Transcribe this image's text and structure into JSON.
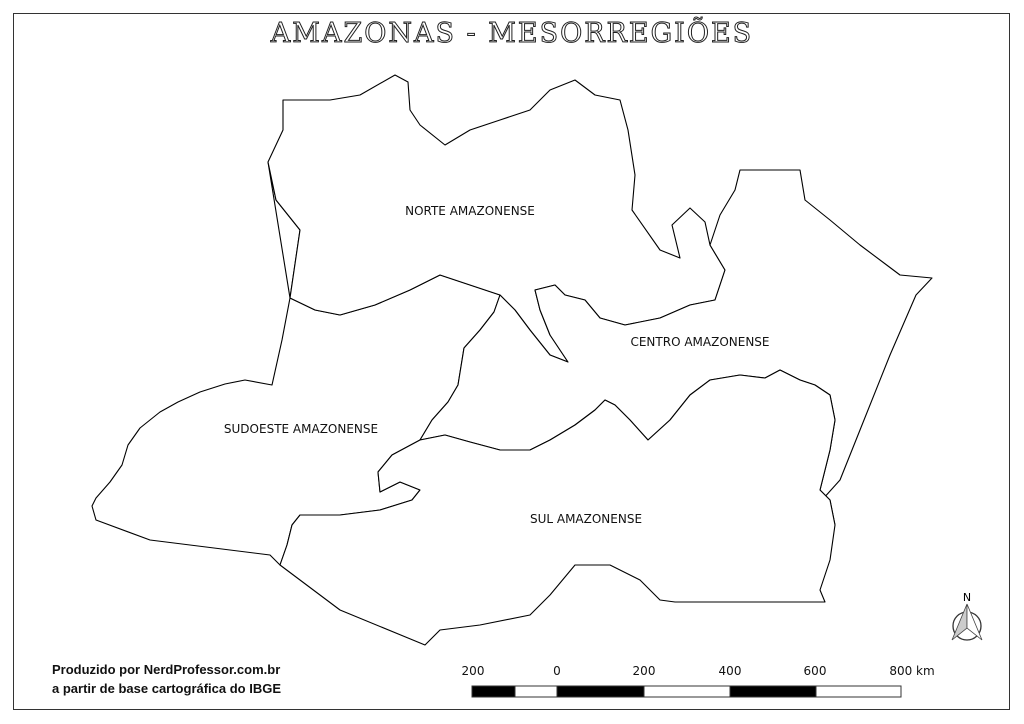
{
  "title": "AMAZONAS - MESORREGIÕES",
  "regions": [
    {
      "name": "NORTE AMAZONENSE"
    },
    {
      "name": "CENTRO AMAZONENSE"
    },
    {
      "name": "SUDOESTE AMAZONENSE"
    },
    {
      "name": "SUL AMAZONENSE"
    }
  ],
  "credits": {
    "line1": "Produzido por NerdProfessor.com.br",
    "line2": "a partir de base cartográfica do IBGE"
  },
  "scale_bar": {
    "labels": [
      "200",
      "0",
      "200",
      "400",
      "600",
      "800 km"
    ]
  },
  "north_arrow": {
    "label": "N",
    "icon": "north-arrow-icon"
  }
}
